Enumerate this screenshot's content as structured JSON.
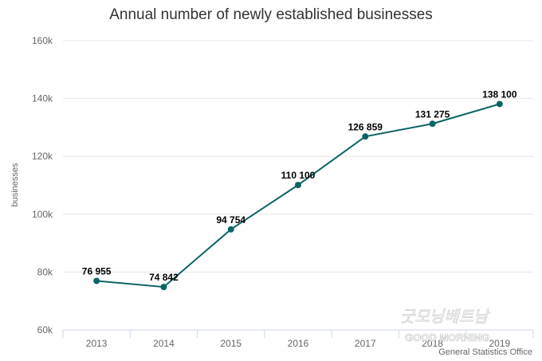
{
  "chart_data": {
    "type": "line",
    "title": "Annual number of newly established businesses",
    "ylabel": "businesses",
    "xlabel": "",
    "categories": [
      "2013",
      "2014",
      "2015",
      "2016",
      "2017",
      "2018",
      "2019"
    ],
    "series": [
      {
        "values": [
          76955,
          74842,
          94754,
          110100,
          126859,
          131275,
          138100
        ],
        "labels": [
          "76 955",
          "74 842",
          "94 754",
          "110 100",
          "126 859",
          "131 275",
          "138 100"
        ],
        "color": "#0d6465"
      }
    ],
    "ylim": [
      60000,
      160000
    ],
    "yticks": [
      60000,
      80000,
      100000,
      120000,
      140000,
      160000
    ],
    "ytick_labels": [
      "60k",
      "80k",
      "100k",
      "120k",
      "140k",
      "160k"
    ],
    "grid": true
  },
  "watermark": {
    "text": "GOOD MORNING",
    "script_text": "굿모닝베트남"
  },
  "source": "General Statistics Office",
  "colors": {
    "line": "#0d6465",
    "grid": "#e6e6e6",
    "axis": "#ccd6eb"
  }
}
